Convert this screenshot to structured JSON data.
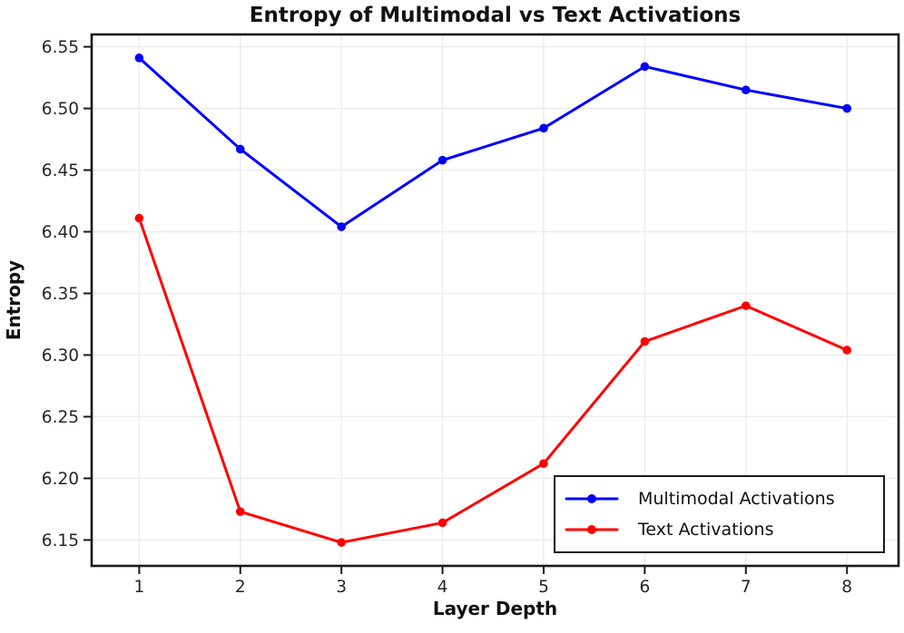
{
  "chart_data": {
    "type": "line",
    "title": "Entropy of Multimodal vs Text Activations",
    "xlabel": "Layer Depth",
    "ylabel": "Entropy",
    "x": [
      1,
      2,
      3,
      4,
      5,
      6,
      7,
      8
    ],
    "series": [
      {
        "name": "Multimodal Activations",
        "color": "#0000ff",
        "values": [
          6.541,
          6.467,
          6.404,
          6.458,
          6.484,
          6.534,
          6.515,
          6.5
        ]
      },
      {
        "name": "Text Activations",
        "color": "#ff0000",
        "values": [
          6.411,
          6.173,
          6.148,
          6.164,
          6.212,
          6.311,
          6.34,
          6.304
        ]
      }
    ],
    "xlim": [
      0.53,
      8.51
    ],
    "ylim": [
      6.129,
      6.56
    ],
    "xticks": [
      1,
      2,
      3,
      4,
      5,
      6,
      7,
      8
    ],
    "xtick_labels": [
      "1",
      "2",
      "3",
      "4",
      "5",
      "6",
      "7",
      "8"
    ],
    "yticks": [
      6.15,
      6.2,
      6.25,
      6.3,
      6.35,
      6.4,
      6.45,
      6.5,
      6.55
    ],
    "ytick_labels": [
      "6.15",
      "6.20",
      "6.25",
      "6.30",
      "6.35",
      "6.40",
      "6.45",
      "6.50",
      "6.55"
    ],
    "grid": true,
    "grid_color": "#ececec",
    "spine_color": "#1a1a1a",
    "tick_label_color": "#262626",
    "background": "#ffffff",
    "legend_position": "lower right"
  }
}
